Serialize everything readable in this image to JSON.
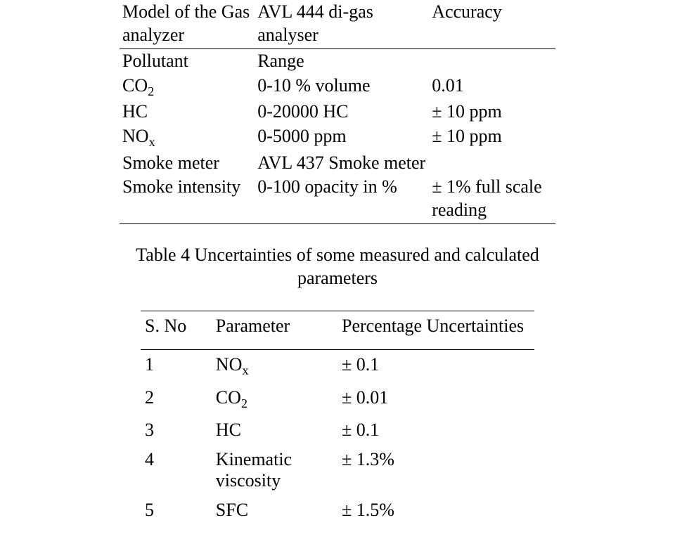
{
  "table1": {
    "header": {
      "c1": "Model of the Gas analyzer",
      "c2": "AVL 444 di-gas analyser",
      "c3": "Accuracy"
    },
    "rows": [
      {
        "c1": "Pollutant",
        "c2": "Range",
        "c3": ""
      },
      {
        "c1_html": "CO<span class=\"sub\">2</span>",
        "c2": "0-10 % volume",
        "c3": "0.01"
      },
      {
        "c1": "HC",
        "c2": "0-20000 HC",
        "c3": "± 10 ppm"
      },
      {
        "c1_html": "NO<span class=\"sub\">x</span>",
        "c2": "0-5000 ppm",
        "c3": "± 10 ppm"
      },
      {
        "c1": "Smoke meter",
        "c2": "AVL 437 Smoke meter",
        "c3": ""
      },
      {
        "c1": "Smoke intensity",
        "c2": "0-100  opacity in %",
        "c3": "± 1% full scale reading"
      }
    ]
  },
  "caption": "Table 4 Uncertainties of some measured and calculated parameters",
  "table2": {
    "header": {
      "c1": "S. No",
      "c2": "Parameter",
      "c3": "Percentage  Uncertainties"
    },
    "rows": [
      {
        "c1": "1",
        "c2_html": "NO<span class=\"sub\">x</span>",
        "c3": "± 0.1"
      },
      {
        "c1": "2",
        "c2_html": "CO<span class=\"sub\">2</span>",
        "c3": "± 0.01"
      },
      {
        "c1": "3",
        "c2": "HC",
        "c3": "± 0.1"
      },
      {
        "c1": "4",
        "c2": "Kinematic viscosity",
        "c3": "± 1.3%"
      },
      {
        "c1": "5",
        "c2": "SFC",
        "c3": "± 1.5%"
      }
    ]
  },
  "layout": {
    "t1_col_widths": [
      "31%",
      "40%",
      "29%"
    ],
    "t2_col_widths": [
      "18%",
      "32%",
      "50%"
    ],
    "font_family": "Times New Roman",
    "font_size_pt": 20,
    "text_color": "#000000",
    "background_color": "#ffffff",
    "rule_color": "#000000"
  }
}
